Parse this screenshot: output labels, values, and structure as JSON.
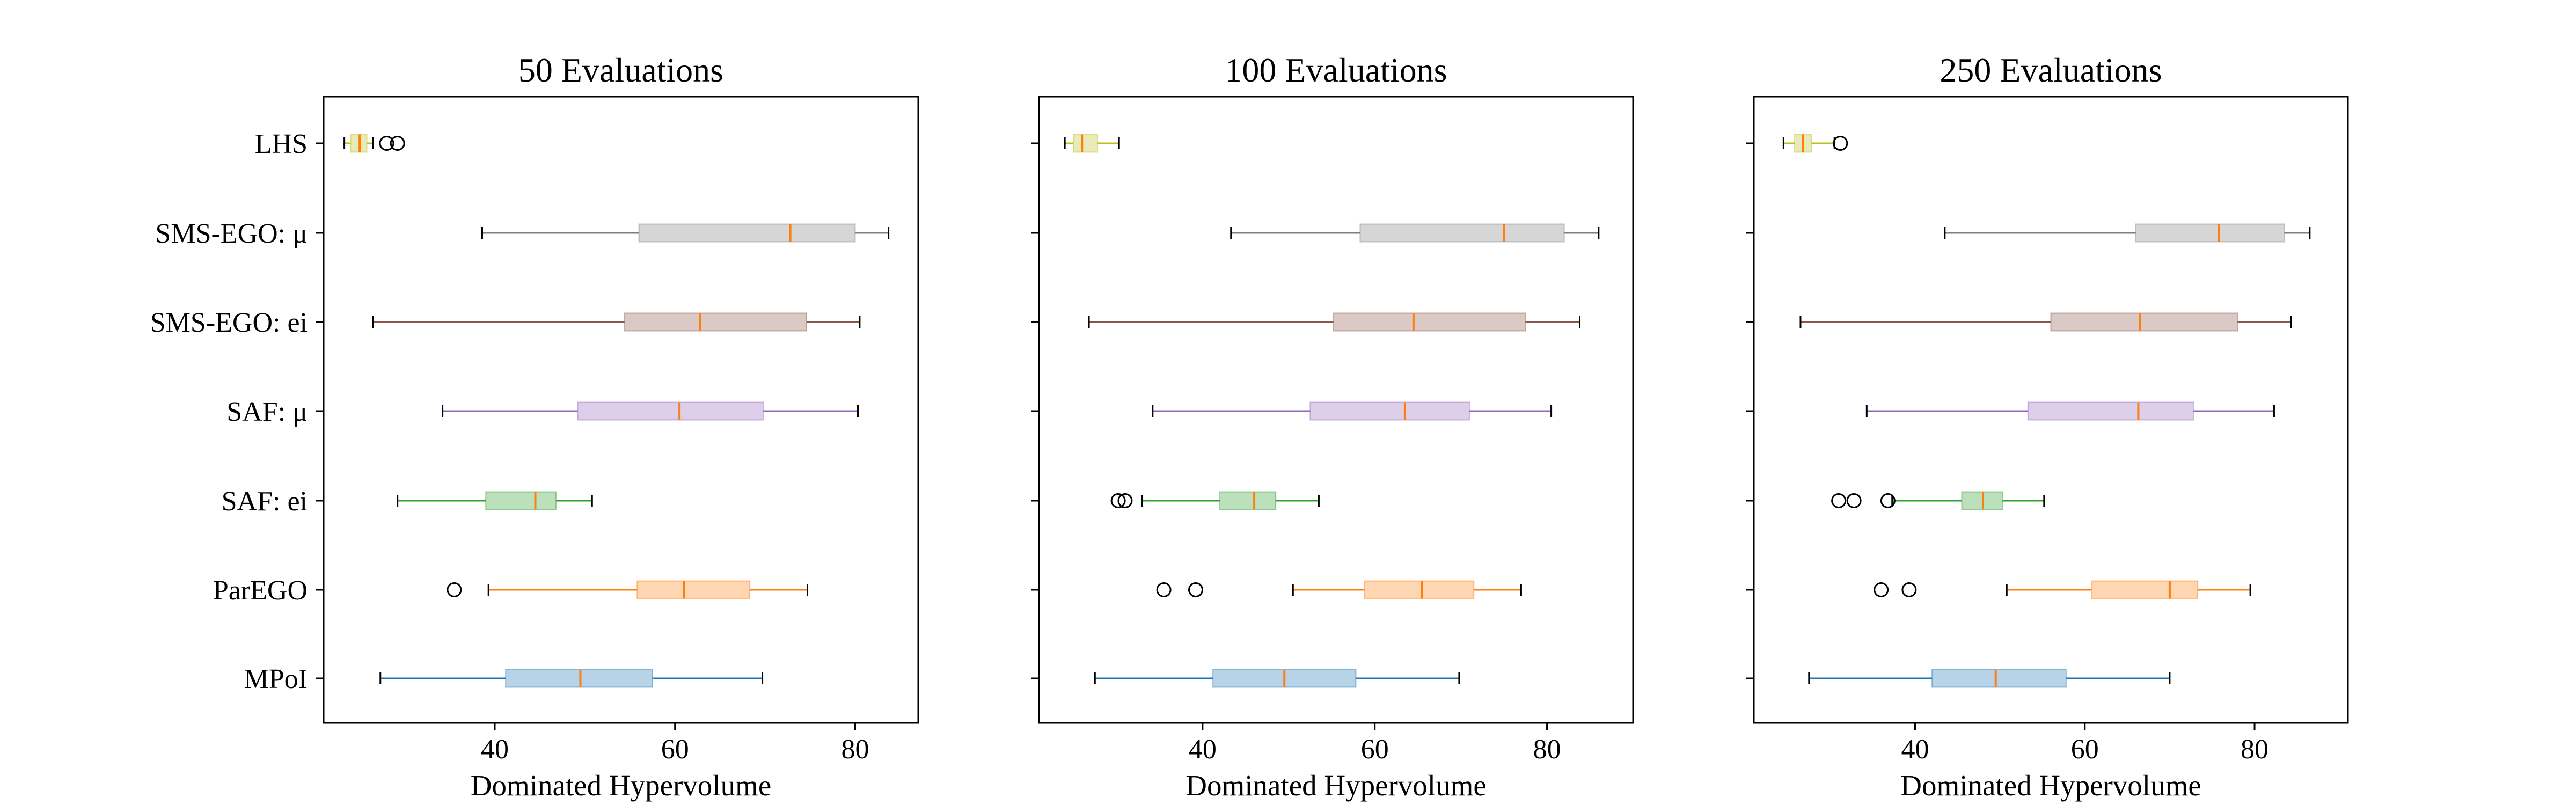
{
  "chart_data": [
    {
      "type": "boxplot",
      "orientation": "horizontal",
      "title": "50 Evaluations",
      "xlabel": "Dominated Hypervolume",
      "xlim": [
        21,
        87
      ],
      "xticks": [
        40,
        60,
        80
      ],
      "categories": [
        "LHS",
        "SMS-EGO: μ",
        "SMS-EGO: ei",
        "SAF: μ",
        "SAF: ei",
        "ParEGO",
        "MPoI"
      ],
      "series": [
        {
          "category": "LHS",
          "color": "#bcbd22",
          "whisker_low": 23.3,
          "q1": 24.0,
          "median": 25.0,
          "q3": 25.8,
          "whisker_high": 26.5,
          "outliers": [
            28.0,
            29.2
          ]
        },
        {
          "category": "SMS-EGO: μ",
          "color": "#7f7f7f",
          "whisker_low": 38.6,
          "q1": 56.0,
          "median": 72.8,
          "q3": 80.0,
          "whisker_high": 83.7,
          "outliers": []
        },
        {
          "category": "SMS-EGO: ei",
          "color": "#8c564b",
          "whisker_low": 26.5,
          "q1": 54.4,
          "median": 62.8,
          "q3": 74.6,
          "whisker_high": 80.5,
          "outliers": []
        },
        {
          "category": "SAF: μ",
          "color": "#9467bd",
          "whisker_low": 34.2,
          "q1": 49.2,
          "median": 60.5,
          "q3": 69.8,
          "whisker_high": 80.3,
          "outliers": []
        },
        {
          "category": "SAF: ei",
          "color": "#2ca02c",
          "whisker_low": 29.2,
          "q1": 39.0,
          "median": 44.5,
          "q3": 46.8,
          "whisker_high": 50.8,
          "outliers": []
        },
        {
          "category": "ParEGO",
          "color": "#ff7f0e",
          "whisker_low": 39.3,
          "q1": 55.8,
          "median": 61.0,
          "q3": 68.3,
          "whisker_high": 74.7,
          "outliers": [
            35.5
          ]
        },
        {
          "category": "MPoI",
          "color": "#1f77b4",
          "whisker_low": 27.3,
          "q1": 41.2,
          "median": 49.5,
          "q3": 57.5,
          "whisker_high": 69.7,
          "outliers": []
        }
      ]
    },
    {
      "type": "boxplot",
      "orientation": "horizontal",
      "title": "100 Evaluations",
      "xlabel": "Dominated Hypervolume",
      "xlim": [
        21,
        90
      ],
      "xticks": [
        40,
        60,
        80
      ],
      "categories": [
        "LHS",
        "SMS-EGO: μ",
        "SMS-EGO: ei",
        "SAF: μ",
        "SAF: ei",
        "ParEGO",
        "MPoI"
      ],
      "series": [
        {
          "category": "LHS",
          "color": "#bcbd22",
          "whisker_low": 24.0,
          "q1": 25.0,
          "median": 26.0,
          "q3": 27.8,
          "whisker_high": 30.3,
          "outliers": []
        },
        {
          "category": "SMS-EGO: μ",
          "color": "#7f7f7f",
          "whisker_low": 43.3,
          "q1": 58.3,
          "median": 75.0,
          "q3": 82.0,
          "whisker_high": 86.0,
          "outliers": []
        },
        {
          "category": "SMS-EGO: ei",
          "color": "#8c564b",
          "whisker_low": 26.8,
          "q1": 55.2,
          "median": 64.5,
          "q3": 77.5,
          "whisker_high": 83.8,
          "outliers": []
        },
        {
          "category": "SAF: μ",
          "color": "#9467bd",
          "whisker_low": 34.2,
          "q1": 52.5,
          "median": 63.5,
          "q3": 71.0,
          "whisker_high": 80.5,
          "outliers": []
        },
        {
          "category": "SAF: ei",
          "color": "#2ca02c",
          "whisker_low": 33.0,
          "q1": 42.0,
          "median": 46.0,
          "q3": 48.5,
          "whisker_high": 53.5,
          "outliers": [
            30.2,
            31.0
          ]
        },
        {
          "category": "ParEGO",
          "color": "#ff7f0e",
          "whisker_low": 50.5,
          "q1": 58.8,
          "median": 65.5,
          "q3": 71.5,
          "whisker_high": 77.0,
          "outliers": [
            35.5,
            39.2
          ]
        },
        {
          "category": "MPoI",
          "color": "#1f77b4",
          "whisker_low": 27.5,
          "q1": 41.2,
          "median": 49.5,
          "q3": 57.8,
          "whisker_high": 69.8,
          "outliers": []
        }
      ]
    },
    {
      "type": "boxplot",
      "orientation": "horizontal",
      "title": "250 Evaluations",
      "xlabel": "Dominated Hypervolume",
      "xlim": [
        21,
        91
      ],
      "xticks": [
        40,
        60,
        80
      ],
      "categories": [
        "LHS",
        "SMS-EGO: μ",
        "SMS-EGO: ei",
        "SAF: μ",
        "SAF: ei",
        "ParEGO",
        "MPoI"
      ],
      "series": [
        {
          "category": "LHS",
          "color": "#bcbd22",
          "whisker_low": 24.5,
          "q1": 25.8,
          "median": 26.8,
          "q3": 27.8,
          "whisker_high": 30.5,
          "outliers": [
            31.2
          ]
        },
        {
          "category": "SMS-EGO: μ",
          "color": "#7f7f7f",
          "whisker_low": 43.5,
          "q1": 66.0,
          "median": 75.8,
          "q3": 83.5,
          "whisker_high": 86.5,
          "outliers": []
        },
        {
          "category": "SMS-EGO: ei",
          "color": "#8c564b",
          "whisker_low": 26.5,
          "q1": 56.0,
          "median": 66.5,
          "q3": 78.0,
          "whisker_high": 84.3,
          "outliers": []
        },
        {
          "category": "SAF: μ",
          "color": "#9467bd",
          "whisker_low": 34.3,
          "q1": 53.3,
          "median": 66.3,
          "q3": 72.8,
          "whisker_high": 82.3,
          "outliers": []
        },
        {
          "category": "SAF: ei",
          "color": "#2ca02c",
          "whisker_low": 37.3,
          "q1": 45.5,
          "median": 48.0,
          "q3": 50.3,
          "whisker_high": 55.2,
          "outliers": [
            31.0,
            32.8,
            36.8
          ]
        },
        {
          "category": "ParEGO",
          "color": "#ff7f0e",
          "whisker_low": 50.8,
          "q1": 60.8,
          "median": 70.0,
          "q3": 73.3,
          "whisker_high": 79.5,
          "outliers": [
            36.0,
            39.3
          ]
        },
        {
          "category": "MPoI",
          "color": "#1f77b4",
          "whisker_low": 27.5,
          "q1": 42.0,
          "median": 49.5,
          "q3": 57.8,
          "whisker_high": 70.0,
          "outliers": []
        }
      ]
    }
  ]
}
